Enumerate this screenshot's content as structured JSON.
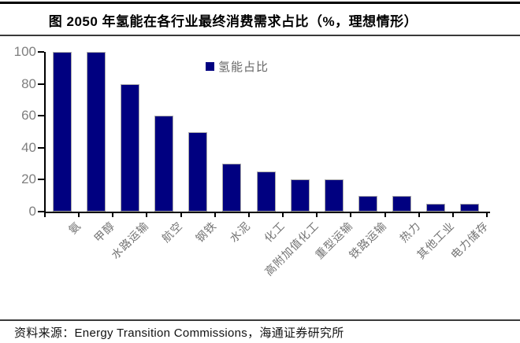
{
  "figure": {
    "title": "图 2050 年氢能在各行业最终消费需求占比（%，理想情形）",
    "source": "资料来源：Energy Transition Commissions，海通证券研究所"
  },
  "legend": {
    "label": "氢能占比",
    "swatch_color": "#000080"
  },
  "chart_data": {
    "type": "bar",
    "title": "图 2050 年氢能在各行业最终消费需求占比（%，理想情形）",
    "categories": [
      "氨",
      "甲醇",
      "水路运输",
      "航空",
      "钢铁",
      "水泥",
      "化工",
      "高附加值化工",
      "重型运输",
      "铁路运输",
      "热力",
      "其他工业",
      "电力储存"
    ],
    "values": [
      100,
      100,
      80,
      60,
      50,
      30,
      25,
      20,
      20,
      10,
      10,
      5,
      5
    ],
    "series": [
      {
        "name": "氢能占比",
        "values": [
          100,
          100,
          80,
          60,
          50,
          30,
          25,
          20,
          20,
          10,
          10,
          5,
          5
        ]
      }
    ],
    "xlabel": "",
    "ylabel": "",
    "ylim": [
      0,
      100
    ],
    "yticks": [
      0,
      20,
      40,
      60,
      80,
      100
    ],
    "legend": [
      "氢能占比"
    ],
    "legend_position": "inside-top-center",
    "grid": false,
    "bar_color": "#000080",
    "bar_border_color": "#aaaaaa",
    "axis_color": "#000000",
    "tick_label_color": "#7f7f7f"
  }
}
